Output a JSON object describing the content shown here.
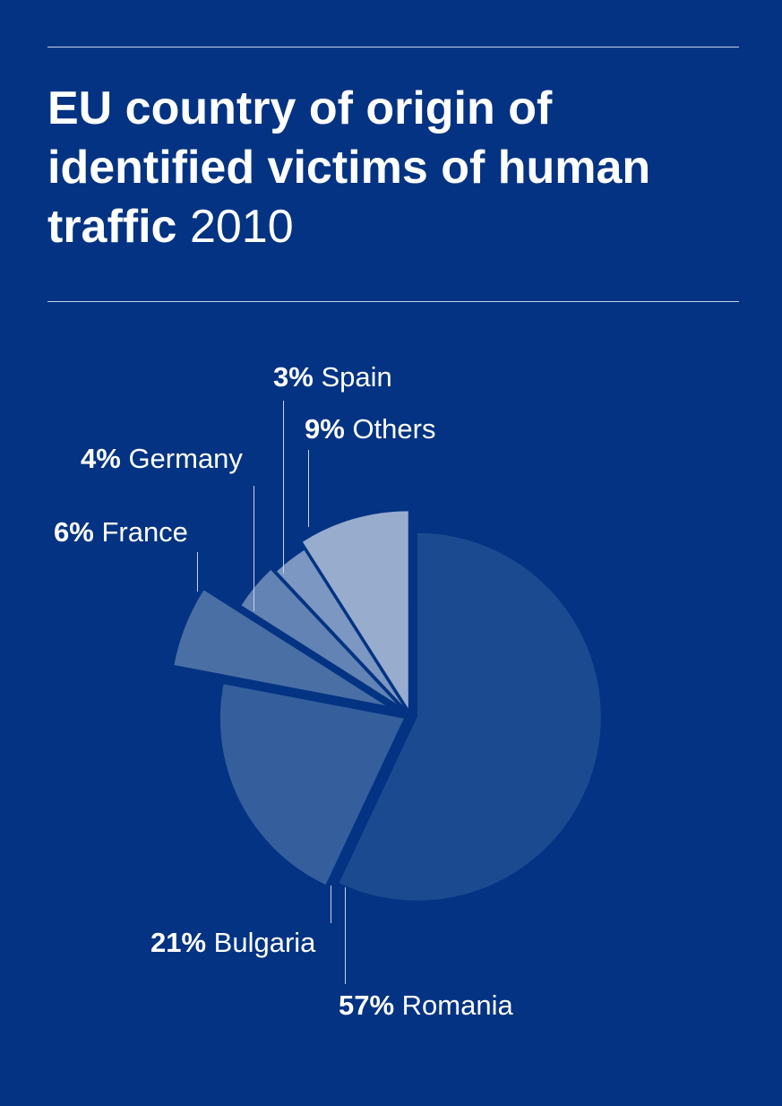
{
  "chart_data": {
    "type": "pie",
    "title": "EU country of origin of identified victims of human traffic",
    "year": "2010",
    "slices": [
      {
        "label": "Romania",
        "value": 57,
        "pct_label": "57%",
        "color": "#1c4a91"
      },
      {
        "label": "Bulgaria",
        "value": 21,
        "pct_label": "21%",
        "color": "#345e9c"
      },
      {
        "label": "France",
        "value": 6,
        "pct_label": "6%",
        "color": "#4a6fa5"
      },
      {
        "label": "Germany",
        "value": 4,
        "pct_label": "4%",
        "color": "#6283b3"
      },
      {
        "label": "Spain",
        "value": 3,
        "pct_label": "3%",
        "color": "#7b97c2"
      },
      {
        "label": "Others",
        "value": 9,
        "pct_label": "9%",
        "color": "#98acce"
      }
    ]
  },
  "colors": {
    "background": "#033382"
  }
}
